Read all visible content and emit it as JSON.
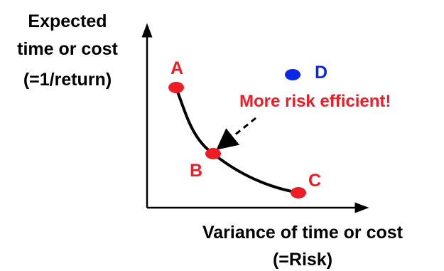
{
  "y_axis_label": {
    "line1": "Expected",
    "line2": "time or cost",
    "line3": "(=1/return)"
  },
  "x_axis_label": {
    "line1": "Variance of time or cost",
    "line2": "(=Risk)"
  },
  "points": [
    {
      "label": "A"
    },
    {
      "label": "B"
    },
    {
      "label": "C"
    },
    {
      "label": "D"
    }
  ],
  "annotation": "More risk efficient!",
  "colors": {
    "point_red": "#ee1c25",
    "point_blue": "#0a28e6",
    "text_red": "#ee1c25",
    "text_blue": "#0a28e6",
    "axis": "#000000"
  }
}
